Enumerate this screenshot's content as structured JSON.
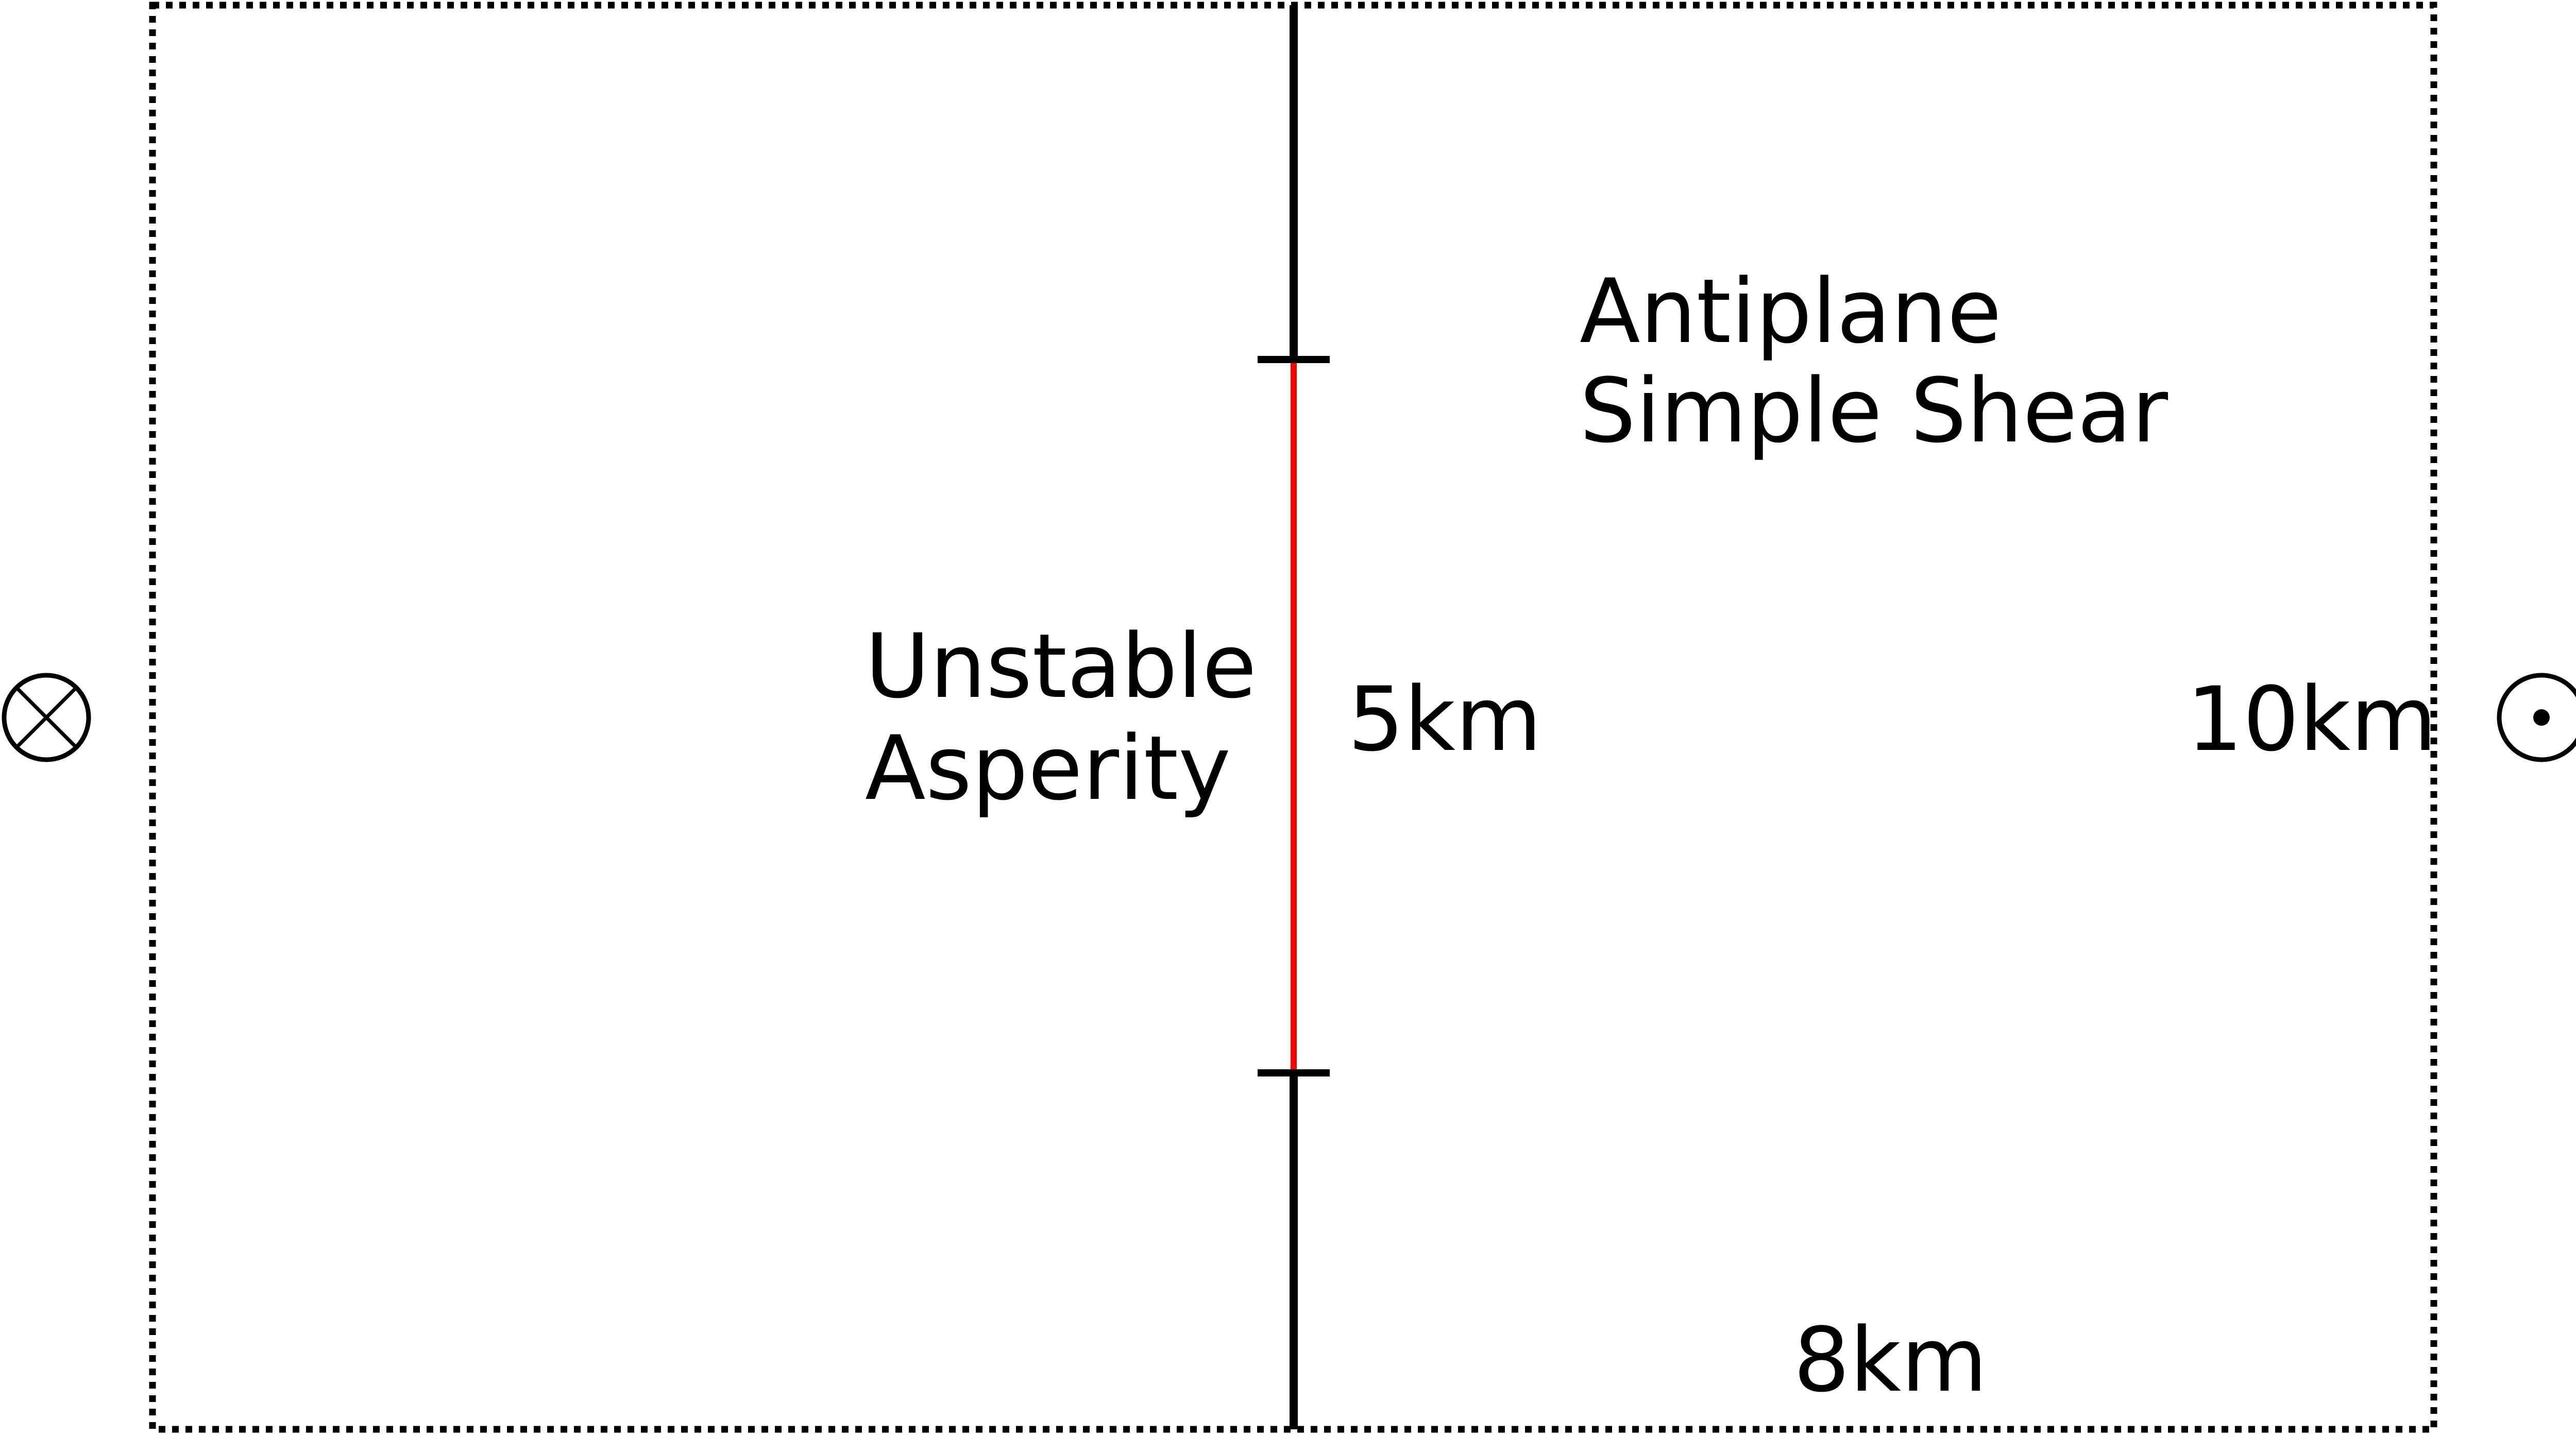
{
  "labels": {
    "shear_line1": "Antiplane",
    "shear_line2": "Simple Shear",
    "asperity_line1": "Unstable",
    "asperity_line2": "Asperity",
    "asperity_length": "5km",
    "domain_height": "10km",
    "domain_half_width": "8km"
  },
  "colors": {
    "background": "#ffffff",
    "stroke": "#000000",
    "asperity": "#ff0000"
  },
  "icons": {
    "left_symbol": "into-page-cross-icon",
    "right_symbol": "out-of-page-dot-icon"
  }
}
